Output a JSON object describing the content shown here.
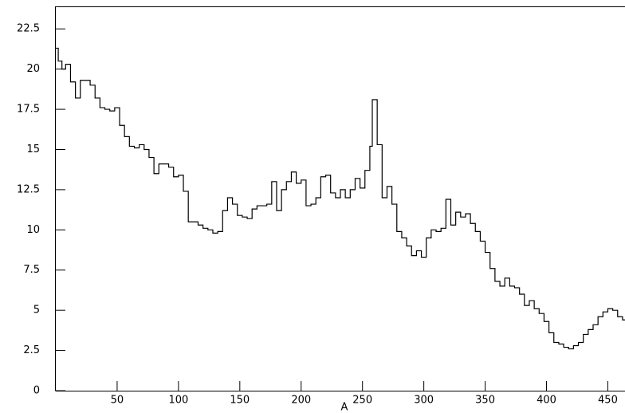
{
  "chart_data": {
    "type": "line",
    "step": true,
    "color": "#000000",
    "xlabel": "A",
    "x": [
      0,
      2,
      5,
      8,
      12,
      16,
      20,
      24,
      28,
      32,
      36,
      40,
      44,
      48,
      52,
      56,
      60,
      64,
      68,
      72,
      76,
      80,
      84,
      88,
      92,
      96,
      100,
      104,
      108,
      112,
      116,
      120,
      124,
      128,
      132,
      136,
      140,
      144,
      148,
      152,
      156,
      160,
      164,
      168,
      172,
      176,
      180,
      184,
      188,
      192,
      196,
      200,
      204,
      208,
      212,
      216,
      220,
      224,
      228,
      232,
      236,
      240,
      244,
      248,
      252,
      256,
      258,
      262,
      266,
      270,
      274,
      278,
      282,
      286,
      290,
      294,
      298,
      302,
      306,
      310,
      314,
      318,
      322,
      326,
      330,
      334,
      338,
      342,
      346,
      350,
      354,
      358,
      362,
      366,
      370,
      374,
      378,
      382,
      386,
      390,
      394,
      398,
      402,
      406,
      410,
      414,
      418,
      422,
      426,
      430,
      434,
      438,
      442,
      446,
      450,
      454,
      458,
      462
    ],
    "values": [
      21.3,
      20.5,
      20.0,
      20.3,
      19.2,
      18.2,
      19.3,
      19.3,
      19.0,
      18.2,
      17.6,
      17.5,
      17.4,
      17.6,
      16.5,
      15.8,
      15.2,
      15.1,
      15.3,
      15.0,
      14.5,
      13.5,
      14.1,
      14.1,
      13.9,
      13.3,
      13.4,
      12.4,
      10.5,
      10.5,
      10.3,
      10.1,
      10.0,
      9.8,
      9.9,
      11.2,
      12.0,
      11.6,
      10.9,
      10.8,
      10.7,
      11.3,
      11.5,
      11.5,
      11.6,
      13.0,
      11.2,
      12.5,
      13.0,
      13.6,
      12.9,
      13.1,
      11.5,
      11.6,
      12.0,
      13.3,
      13.4,
      12.3,
      12.0,
      12.5,
      12.0,
      12.5,
      13.2,
      12.6,
      13.7,
      15.2,
      18.1,
      15.3,
      12.0,
      12.7,
      11.6,
      9.9,
      9.5,
      9.0,
      8.4,
      8.7,
      8.3,
      9.5,
      10.0,
      9.9,
      10.1,
      11.9,
      10.3,
      11.1,
      10.8,
      11.0,
      10.4,
      9.9,
      9.3,
      8.6,
      7.6,
      6.8,
      6.5,
      7.0,
      6.5,
      6.4,
      6.0,
      5.3,
      5.6,
      5.1,
      4.8,
      4.3,
      3.6,
      3.0,
      2.9,
      2.7,
      2.6,
      2.8,
      3.0,
      3.5,
      3.8,
      4.1,
      4.6,
      4.9,
      5.1,
      5.0,
      4.6,
      4.4
    ],
    "xlim": [
      0,
      464
    ],
    "ylim": [
      0,
      23.9
    ],
    "xticks": [
      50,
      100,
      150,
      200,
      250,
      300,
      350,
      400,
      450
    ],
    "yticks": [
      0,
      2.5,
      5,
      7.5,
      10,
      12.5,
      15,
      17.5,
      20,
      22.5
    ]
  }
}
